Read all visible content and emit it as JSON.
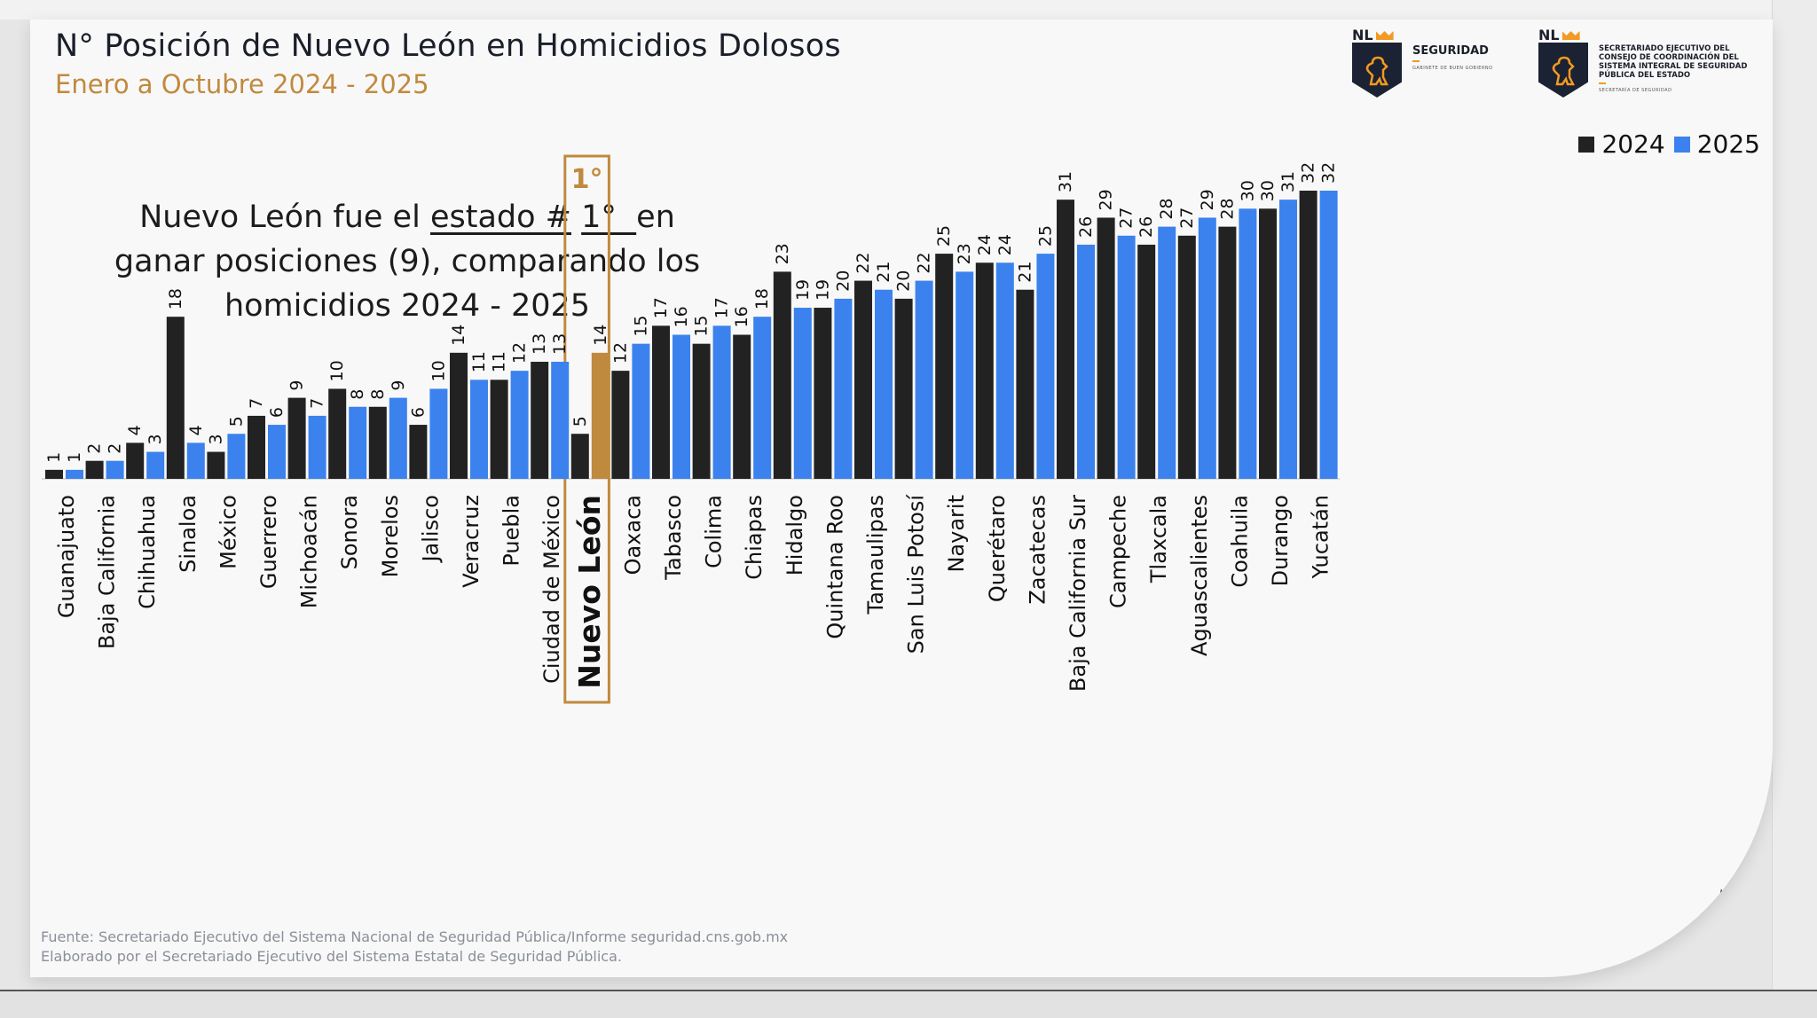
{
  "header": {
    "title": "N° Posición de Nuevo León en Homicidios Dolosos",
    "subtitle": "Enero a Octubre 2024 - 2025"
  },
  "logos": {
    "logo1": {
      "mark": "NL",
      "name": "SEGURIDAD",
      "sub": "GABINETE DE BUEN GOBIERNO"
    },
    "logo2": {
      "mark": "NL",
      "name": "SECRETARIADO EJECUTIVO DEL CONSEJO DE COORDINACIÓN DEL SISTEMA INTEGRAL DE SEGURIDAD PÚBLICA DEL ESTADO",
      "sub": "SECRETARÍA DE SEGURIDAD"
    }
  },
  "note": {
    "part1": "Nuevo León fue el ",
    "emph1": "estado #",
    "emph2": "1°  ",
    "part2": "en ganar posiciones (9), comparando los homicidios 2024 - 2025"
  },
  "highlight": {
    "label": "1°",
    "category": "Nuevo León"
  },
  "footer": {
    "line1": "Fuente: Secretariado Ejecutivo del Sistema Nacional de Seguridad Pública/Informe seguridad.cns.gob.mx",
    "line2": "Elaborado por el Secretariado Ejecutivo del Sistema Estatal de Seguridad Pública."
  },
  "colors": {
    "s2024": "#222222",
    "s2025": "#3b82ee",
    "highlight": "#c08a3e"
  },
  "chart_data": {
    "type": "bar",
    "title": "N° Posición de Nuevo León en Homicidios Dolosos",
    "subtitle": "Enero a Octubre 2024 - 2025",
    "xlabel": "",
    "ylabel": "",
    "ylim": [
      0,
      32
    ],
    "grid": false,
    "legend_position": "top-right",
    "categories": [
      "Guanajuato",
      "Baja California",
      "Chihuahua",
      "Sinaloa",
      "México",
      "Guerrero",
      "Michoacán",
      "Sonora",
      "Morelos",
      "Jalisco",
      "Veracruz",
      "Puebla",
      "Ciudad de México",
      "Nuevo León",
      "Oaxaca",
      "Tabasco",
      "Colima",
      "Chiapas",
      "Hidalgo",
      "Quintana Roo",
      "Tamaulipas",
      "San Luis Potosí",
      "Nayarit",
      "Querétaro",
      "Zacatecas",
      "Baja California Sur",
      "Campeche",
      "Tlaxcala",
      "Aguascalientes",
      "Coahuila",
      "Durango",
      "Yucatán"
    ],
    "series": [
      {
        "name": "2024",
        "values": [
          1,
          2,
          4,
          18,
          3,
          7,
          9,
          10,
          8,
          6,
          14,
          11,
          13,
          5,
          12,
          17,
          15,
          16,
          23,
          19,
          22,
          20,
          25,
          24,
          21,
          31,
          29,
          26,
          27,
          28,
          30,
          32
        ]
      },
      {
        "name": "2025",
        "values": [
          1,
          2,
          3,
          4,
          5,
          6,
          7,
          8,
          9,
          10,
          11,
          12,
          13,
          14,
          15,
          16,
          17,
          18,
          19,
          20,
          21,
          22,
          23,
          24,
          25,
          26,
          27,
          28,
          29,
          30,
          31,
          32
        ]
      }
    ],
    "highlighted_category": "Nuevo León",
    "highlighted_series": "2025"
  }
}
